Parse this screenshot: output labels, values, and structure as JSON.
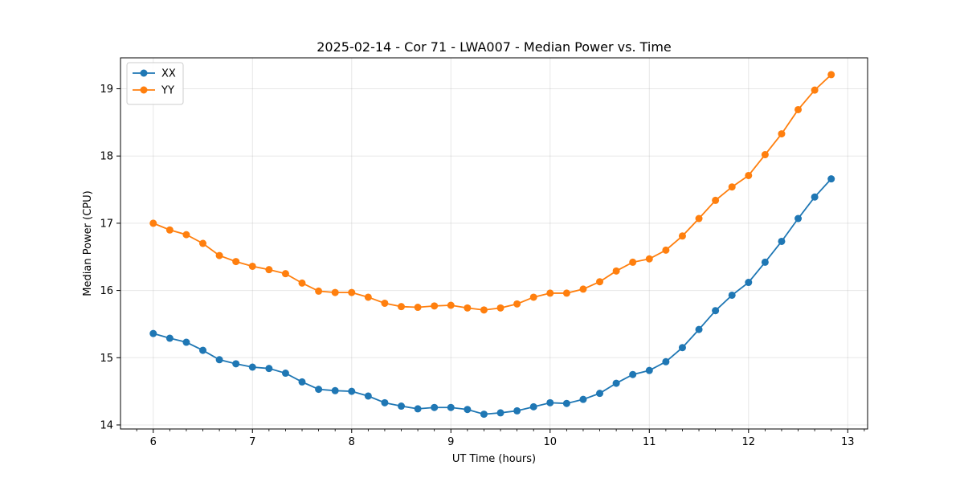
{
  "chart_data": {
    "type": "line",
    "title": "2025-02-14 - Cor 71 - LWA007 - Median Power vs. Time",
    "xlabel": "UT Time (hours)",
    "ylabel": "Median Power (CPU)",
    "xlim": [
      5.67,
      13.2
    ],
    "ylim": [
      13.94,
      19.46
    ],
    "xticks": [
      6,
      7,
      8,
      9,
      10,
      11,
      12,
      13
    ],
    "yticks": [
      14,
      15,
      16,
      17,
      18,
      19
    ],
    "grid": true,
    "legend_position": "top-left",
    "x": [
      6.0,
      6.1667,
      6.3333,
      6.5,
      6.6667,
      6.8333,
      7.0,
      7.1667,
      7.3333,
      7.5,
      7.6667,
      7.8333,
      8.0,
      8.1667,
      8.3333,
      8.5,
      8.6667,
      8.8333,
      9.0,
      9.1667,
      9.3333,
      9.5,
      9.6667,
      9.8333,
      10.0,
      10.1667,
      10.3333,
      10.5,
      10.6667,
      10.8333,
      11.0,
      11.1667,
      11.3333,
      11.5,
      11.6667,
      11.8333,
      12.0,
      12.1667,
      12.3333,
      12.5,
      12.6667,
      12.8333
    ],
    "series": [
      {
        "name": "XX",
        "color": "#1f77b4",
        "values": [
          15.36,
          15.29,
          15.23,
          15.11,
          14.97,
          14.91,
          14.86,
          14.84,
          14.77,
          14.64,
          14.53,
          14.51,
          14.5,
          14.43,
          14.33,
          14.28,
          14.24,
          14.26,
          14.26,
          14.23,
          14.16,
          14.18,
          14.21,
          14.27,
          14.33,
          14.32,
          14.38,
          14.47,
          14.62,
          14.75,
          14.81,
          14.94,
          15.15,
          15.42,
          15.7,
          15.93,
          16.12,
          16.42,
          16.73,
          17.07,
          17.39,
          17.66
        ]
      },
      {
        "name": "YY",
        "color": "#ff7f0e",
        "values": [
          17.0,
          16.9,
          16.83,
          16.7,
          16.52,
          16.43,
          16.36,
          16.31,
          16.25,
          16.11,
          15.99,
          15.97,
          15.97,
          15.9,
          15.81,
          15.76,
          15.75,
          15.77,
          15.78,
          15.74,
          15.71,
          15.74,
          15.8,
          15.9,
          15.96,
          15.96,
          16.02,
          16.13,
          16.29,
          16.42,
          16.47,
          16.6,
          16.81,
          17.07,
          17.34,
          17.54,
          17.71,
          18.02,
          18.33,
          18.69,
          18.98,
          19.21
        ]
      }
    ]
  }
}
